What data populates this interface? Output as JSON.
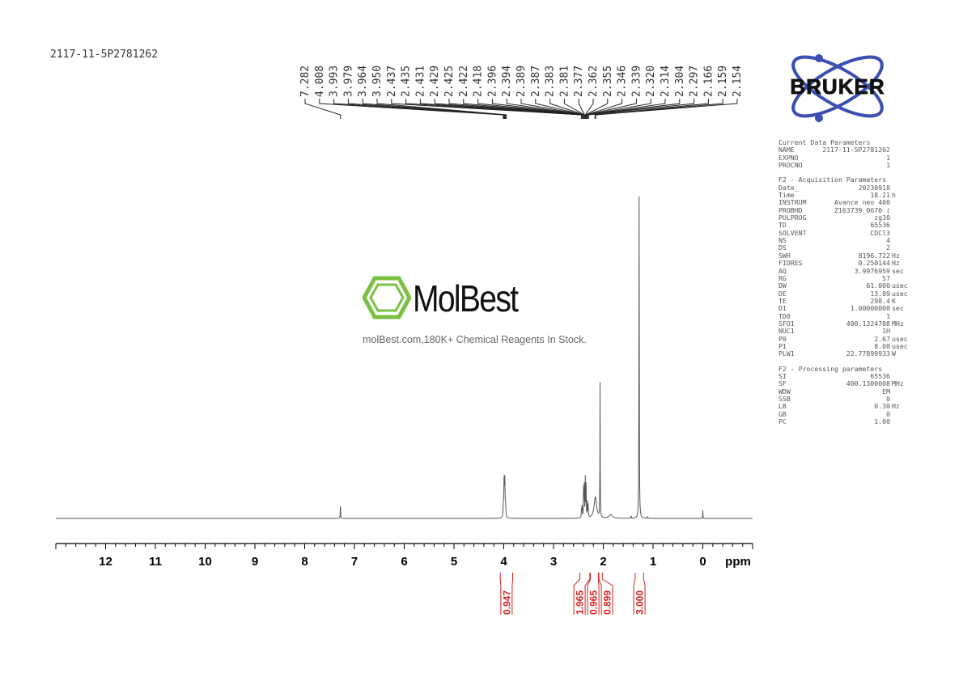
{
  "sample_id": "2117-11-5P2781262",
  "logos": {
    "bruker": "BRUKER",
    "watermark_name": "MolBest",
    "watermark_tagline": "molBest.com,180K+ Chemical Reagents In Stock."
  },
  "colors": {
    "spectrum": "#555555",
    "integral": "#d42020",
    "bruker_blue": "#3a4fb0",
    "watermark_green": "#7ac142"
  },
  "chart_data": {
    "type": "line",
    "title": "",
    "xlabel": "ppm",
    "xlim": [
      13,
      -1
    ],
    "x_reversed": true,
    "x_ticks": [
      12,
      11,
      10,
      9,
      8,
      7,
      6,
      5,
      4,
      3,
      2,
      1,
      0
    ],
    "y_unit": "relative intensity",
    "peak_labels": [
      "7.282",
      "4.008",
      "3.993",
      "3.979",
      "3.964",
      "3.950",
      "2.437",
      "2.435",
      "2.431",
      "2.429",
      "2.425",
      "2.422",
      "2.418",
      "2.396",
      "2.394",
      "2.389",
      "2.387",
      "2.383",
      "2.381",
      "2.377",
      "2.362",
      "2.355",
      "2.346",
      "2.339",
      "2.320",
      "2.314",
      "2.304",
      "2.297",
      "2.166",
      "2.159",
      "2.154"
    ],
    "peaks": [
      {
        "ppm": 7.282,
        "intensity": 4.2,
        "width": 0.004
      },
      {
        "ppm": 4.008,
        "intensity": 3.5,
        "width": 0.006
      },
      {
        "ppm": 3.993,
        "intensity": 11,
        "width": 0.006
      },
      {
        "ppm": 3.979,
        "intensity": 11,
        "width": 0.006
      },
      {
        "ppm": 3.964,
        "intensity": 3.5,
        "width": 0.006
      },
      {
        "ppm": 2.437,
        "intensity": 3,
        "width": 0.004
      },
      {
        "ppm": 2.425,
        "intensity": 4,
        "width": 0.004
      },
      {
        "ppm": 2.396,
        "intensity": 10,
        "width": 0.004
      },
      {
        "ppm": 2.383,
        "intensity": 10,
        "width": 0.004
      },
      {
        "ppm": 2.362,
        "intensity": 12,
        "width": 0.004
      },
      {
        "ppm": 2.346,
        "intensity": 10,
        "width": 0.004
      },
      {
        "ppm": 2.32,
        "intensity": 5,
        "width": 0.004
      },
      {
        "ppm": 2.304,
        "intensity": 4,
        "width": 0.004
      },
      {
        "ppm": 2.16,
        "intensity": 6.5,
        "width": 0.03
      },
      {
        "ppm": 2.065,
        "intensity": 41,
        "width": 0.003
      },
      {
        "ppm": 1.85,
        "intensity": 1.1,
        "width": 0.04
      },
      {
        "ppm": 1.44,
        "intensity": 0.8,
        "width": 0.004
      },
      {
        "ppm": 1.28,
        "intensity": 100,
        "width": 0.004
      },
      {
        "ppm": 1.11,
        "intensity": 0.6,
        "width": 0.004
      },
      {
        "ppm": 0.0,
        "intensity": 2.5,
        "width": 0.003
      }
    ],
    "integrals": [
      {
        "label": "0.947",
        "from": 4.07,
        "to": 3.82
      },
      {
        "label": "1.965",
        "from": 2.47,
        "to": 2.27
      },
      {
        "label": "0.965",
        "from": 2.26,
        "to": 2.1
      },
      {
        "label": "0.899",
        "from": 2.09,
        "to": 2.02
      },
      {
        "label": "3.000",
        "from": 1.36,
        "to": 1.19
      }
    ],
    "grid": false
  },
  "parameters": {
    "current": {
      "title": "Current Data Parameters",
      "rows": [
        {
          "k": "NAME",
          "v": "2117-11-5P2781262",
          "u": ""
        },
        {
          "k": "EXPNO",
          "v": "1",
          "u": ""
        },
        {
          "k": "PROCNO",
          "v": "1",
          "u": ""
        }
      ]
    },
    "acquisition": {
      "title": "F2 - Acquisition Parameters",
      "rows": [
        {
          "k": "Date_",
          "v": "20230918",
          "u": ""
        },
        {
          "k": "Time",
          "v": "18.21",
          "u": "h"
        },
        {
          "k": "INSTRUM",
          "v": "Avance neo 400",
          "u": ""
        },
        {
          "k": "PROBHD",
          "v": "Z163739_0670 (",
          "u": ""
        },
        {
          "k": "PULPROG",
          "v": "zg30",
          "u": ""
        },
        {
          "k": "TD",
          "v": "65536",
          "u": ""
        },
        {
          "k": "SOLVENT",
          "v": "CDCl3",
          "u": ""
        },
        {
          "k": "NS",
          "v": "4",
          "u": ""
        },
        {
          "k": "DS",
          "v": "2",
          "u": ""
        },
        {
          "k": "SWH",
          "v": "8196.722",
          "u": "Hz"
        },
        {
          "k": "FIDRES",
          "v": "0.250144",
          "u": "Hz"
        },
        {
          "k": "AQ",
          "v": "3.9976959",
          "u": "sec"
        },
        {
          "k": "RG",
          "v": "57",
          "u": ""
        },
        {
          "k": "DW",
          "v": "61.000",
          "u": "usec"
        },
        {
          "k": "DE",
          "v": "13.89",
          "u": "usec"
        },
        {
          "k": "TE",
          "v": "298.4",
          "u": "K"
        },
        {
          "k": "D1",
          "v": "1.00000000",
          "u": "sec"
        },
        {
          "k": "TD0",
          "v": "1",
          "u": ""
        },
        {
          "k": "SFO1",
          "v": "400.1324708",
          "u": "MHz"
        },
        {
          "k": "NUC1",
          "v": "1H",
          "u": ""
        },
        {
          "k": "P0",
          "v": "2.67",
          "u": "usec"
        },
        {
          "k": "P1",
          "v": "8.00",
          "u": "usec"
        },
        {
          "k": "PLW1",
          "v": "22.77899933",
          "u": "W"
        }
      ]
    },
    "processing": {
      "title": "F2 - Processing parameters",
      "rows": [
        {
          "k": "SI",
          "v": "65536",
          "u": ""
        },
        {
          "k": "SF",
          "v": "400.1300008",
          "u": "MHz"
        },
        {
          "k": "WDW",
          "v": "EM",
          "u": ""
        },
        {
          "k": "SSB",
          "v": "0",
          "u": ""
        },
        {
          "k": "LB",
          "v": "0.30",
          "u": "Hz"
        },
        {
          "k": "GB",
          "v": "0",
          "u": ""
        },
        {
          "k": "PC",
          "v": "1.00",
          "u": ""
        }
      ]
    }
  }
}
